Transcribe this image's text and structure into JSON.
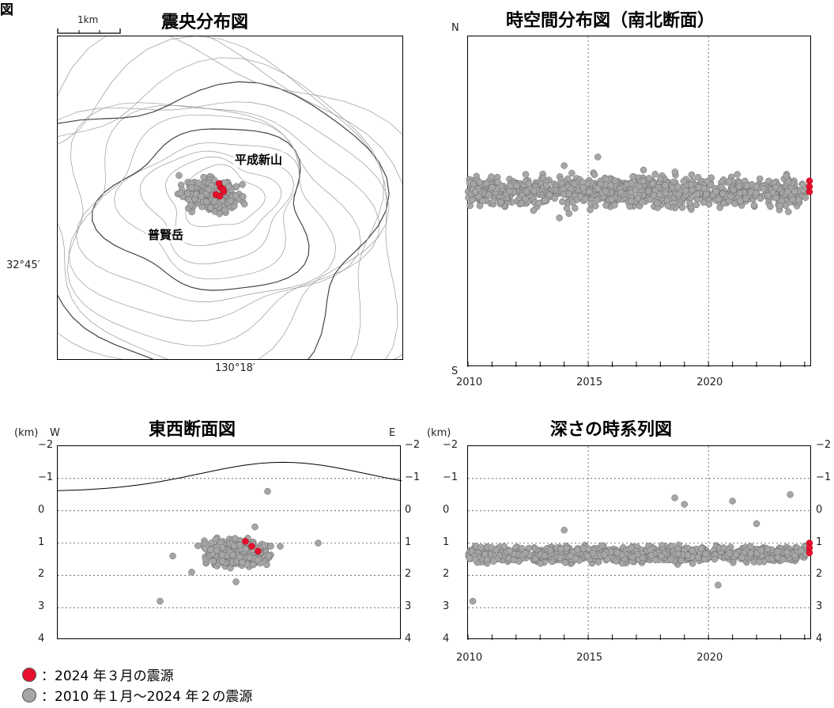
{
  "figure_label": "図",
  "colors": {
    "recent": "#e8102f",
    "past": "#a6a6a6",
    "past_edge": "#666666"
  },
  "map": {
    "title": "震央分布図",
    "scale_label": "1km",
    "lat_label": "32°45′",
    "lon_label": "130°18′",
    "label_heisei": "平成新山",
    "label_fugen": "普賢岳"
  },
  "legend": {
    "recent": "：2024 年３月の震源",
    "past": "：2010 年１月～2024 年２の震源"
  },
  "chart_data": [
    {
      "id": "ns",
      "type": "scatter",
      "title": "時空間分布図（南北断面）",
      "xlabel": "",
      "ylabel": "",
      "y_top_label": "N",
      "y_bottom_label": "S",
      "xlim": [
        2010,
        2024.3
      ],
      "xticks": [
        "2010",
        "2015",
        "2020"
      ],
      "series": [
        {
          "points": [
            [
              2010.3,
              0.0
            ],
            [
              2011.0,
              0.1
            ],
            [
              2012.4,
              0.4
            ],
            [
              2013.2,
              -0.2
            ],
            [
              2014.0,
              0.6
            ],
            [
              2014.2,
              -0.5
            ],
            [
              2015.4,
              0.8
            ],
            [
              2016.8,
              0.2
            ],
            [
              2018.0,
              0.3
            ],
            [
              2019.5,
              -0.3
            ],
            [
              2021.2,
              0.4
            ],
            [
              2022.8,
              0.1
            ],
            [
              2013.8,
              -0.6
            ],
            [
              2017.3,
              0.5
            ]
          ]
        },
        {
          "points": [
            [
              2024.2,
              0.25
            ],
            [
              2024.2,
              0.12
            ],
            [
              2024.2,
              0.0
            ]
          ]
        }
      ]
    },
    {
      "id": "ew",
      "type": "scatter",
      "title": "東西断面図",
      "xlabel": "",
      "ylabel": "(km)",
      "x_left_label": "W",
      "x_right_label": "E",
      "ylim": [
        -2,
        4
      ],
      "yticks": [
        "−2",
        "−1",
        "0",
        "1",
        "2",
        "3",
        "4"
      ],
      "series": [
        {
          "points": [
            [
              -0.3,
              1.2
            ],
            [
              0.2,
              1.6
            ],
            [
              -0.6,
              1.9
            ],
            [
              0.4,
              0.5
            ],
            [
              0.6,
              -0.6
            ],
            [
              0.1,
              2.2
            ],
            [
              -0.9,
              1.4
            ],
            [
              0.8,
              1.1
            ],
            [
              -1.1,
              2.8
            ],
            [
              1.4,
              1.0
            ]
          ]
        },
        {
          "points": [
            [
              0.25,
              0.95
            ],
            [
              0.35,
              1.1
            ],
            [
              0.45,
              1.25
            ]
          ]
        }
      ]
    },
    {
      "id": "depth",
      "type": "scatter",
      "title": "深さの時系列図",
      "xlabel": "",
      "ylabel": "(km)",
      "xlim": [
        2010,
        2024.3
      ],
      "ylim": [
        -2,
        4
      ],
      "xticks": [
        "2010",
        "2015",
        "2020"
      ],
      "yticks": [
        "−2",
        "−1",
        "0",
        "1",
        "2",
        "3",
        "4"
      ],
      "series": [
        {
          "points": [
            [
              2010.3,
              1.5
            ],
            [
              2010.2,
              2.8
            ],
            [
              2011.5,
              1.1
            ],
            [
              2014.0,
              0.6
            ],
            [
              2018.6,
              -0.4
            ],
            [
              2019.0,
              -0.2
            ],
            [
              2021.0,
              -0.3
            ],
            [
              2023.4,
              -0.5
            ],
            [
              2016.2,
              1.3
            ],
            [
              2020.4,
              2.3
            ],
            [
              2022.0,
              0.4
            ]
          ]
        },
        {
          "points": [
            [
              2024.2,
              1.0
            ],
            [
              2024.2,
              1.15
            ],
            [
              2024.2,
              1.3
            ]
          ]
        }
      ]
    }
  ]
}
